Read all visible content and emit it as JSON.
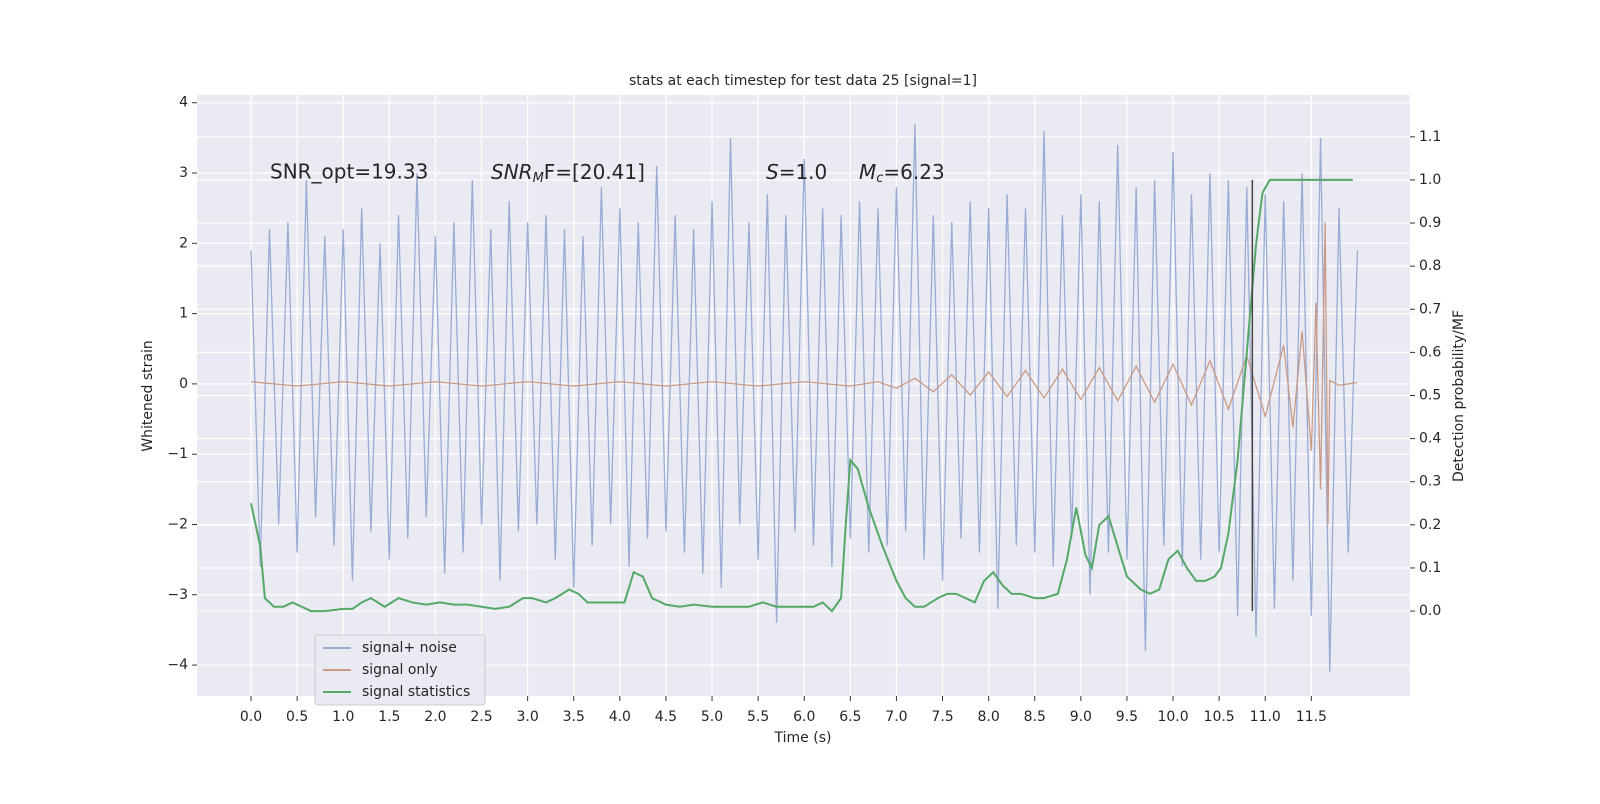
{
  "chart_data": {
    "type": "line",
    "title": "stats at each timestep for test data 25 [signal=1]",
    "x_label": "Time (s)",
    "y_label": "Whitened strain",
    "y2_label": "Detection probability/MF",
    "xlim": [
      -0.586,
      12.57
    ],
    "ylim": [
      -4.44,
      4.11
    ],
    "y2lim": [
      -0.197,
      1.197
    ],
    "xticks": [
      {
        "value": 0,
        "label": "0.0"
      },
      0.5,
      {
        "value": 1,
        "label": "1.0"
      },
      1.5,
      {
        "value": 2,
        "label": "2.0"
      },
      2.5,
      {
        "value": 3,
        "label": "3.0"
      },
      3.5,
      {
        "value": 4,
        "label": "4.0"
      },
      4.5,
      {
        "value": 5,
        "label": "5.0"
      },
      5.5,
      {
        "value": 6,
        "label": "6.0"
      },
      6.5,
      {
        "value": 7,
        "label": "7.0"
      },
      7.5,
      {
        "value": 8,
        "label": "8.0"
      },
      8.5,
      {
        "value": 9,
        "label": "9.0"
      },
      9.5,
      {
        "value": 10,
        "label": "10.0"
      },
      10.5,
      {
        "value": 11,
        "label": "11.0"
      },
      11.5
    ],
    "yticks": [
      {
        "value": -4,
        "label": "−4"
      },
      {
        "value": -3,
        "label": "−3"
      },
      {
        "value": -2,
        "label": "−2"
      },
      {
        "value": -1,
        "label": "−1"
      },
      0,
      1,
      2,
      3,
      4
    ],
    "y2ticks": [
      {
        "value": 0,
        "label": "0.0"
      },
      0.1,
      0.2,
      0.3,
      0.4,
      0.5,
      0.6,
      0.7,
      0.8,
      0.9,
      {
        "value": 1,
        "label": "1.0"
      },
      1.1
    ],
    "grid": true,
    "legend": "lower left",
    "annotations": [
      {
        "text": "SNR_opt=19.33"
      },
      {
        "text": "SNR",
        "sub": "M",
        "tail": "F=[20.41]"
      },
      {
        "text": "S",
        "tail": "=1.0"
      },
      {
        "text": "M",
        "sub": "c",
        "tail": "=6.23"
      }
    ],
    "vline": {
      "x": 10.86,
      "ymin": 0,
      "ymax": 1,
      "color": "#444444"
    },
    "series": [
      {
        "name": "signal+ noise",
        "color": "#9aabd4",
        "x": [
          0,
          0.1,
          0.2,
          0.3,
          0.4,
          0.5,
          0.6,
          0.7,
          0.8,
          0.9,
          1,
          1.1,
          1.2,
          1.3,
          1.4,
          1.5,
          1.6,
          1.7,
          1.8,
          1.9,
          2,
          2.1,
          2.2,
          2.3,
          2.4,
          2.5,
          2.6,
          2.7,
          2.8,
          2.9,
          3,
          3.1,
          3.2,
          3.3,
          3.4,
          3.5,
          3.6,
          3.7,
          3.8,
          3.9,
          4,
          4.1,
          4.2,
          4.3,
          4.4,
          4.5,
          4.6,
          4.7,
          4.8,
          4.9,
          5,
          5.1,
          5.2,
          5.3,
          5.4,
          5.5,
          5.6,
          5.7,
          5.8,
          5.9,
          6,
          6.1,
          6.2,
          6.3,
          6.4,
          6.5,
          6.6,
          6.7,
          6.8,
          6.9,
          7,
          7.1,
          7.2,
          7.3,
          7.4,
          7.5,
          7.6,
          7.7,
          7.8,
          7.9,
          8,
          8.1,
          8.2,
          8.3,
          8.4,
          8.5,
          8.6,
          8.7,
          8.8,
          8.9,
          9,
          9.1,
          9.2,
          9.3,
          9.4,
          9.5,
          9.6,
          9.7,
          9.8,
          9.9,
          10,
          10.1,
          10.2,
          10.3,
          10.4,
          10.5,
          10.6,
          10.7,
          10.8,
          10.9,
          11,
          11.1,
          11.2,
          11.3,
          11.4,
          11.5,
          11.6,
          11.7,
          11.8,
          11.9,
          12
        ],
        "values": [
          1.9,
          -2.6,
          2.2,
          -2.0,
          2.3,
          -2.4,
          2.9,
          -1.9,
          2.1,
          -2.3,
          2.2,
          -2.8,
          2.5,
          -2.1,
          2.0,
          -2.5,
          2.4,
          -2.2,
          3.0,
          -1.9,
          2.1,
          -2.7,
          2.3,
          -2.4,
          2.9,
          -2.0,
          2.2,
          -2.8,
          2.6,
          -2.1,
          2.3,
          -2.0,
          2.4,
          -2.5,
          2.2,
          -2.9,
          2.1,
          -2.3,
          2.8,
          -2.0,
          2.5,
          -2.6,
          2.3,
          -2.2,
          3.1,
          -2.1,
          2.4,
          -2.4,
          2.2,
          -2.7,
          2.6,
          -2.9,
          3.5,
          -2.0,
          2.3,
          -2.5,
          2.7,
          -3.4,
          2.4,
          -2.1,
          3.2,
          -2.3,
          2.5,
          -2.6,
          2.4,
          -2.2,
          2.6,
          -2.4,
          2.5,
          -2.3,
          2.8,
          -2.1,
          3.7,
          -2.5,
          2.4,
          -2.8,
          2.3,
          -2.2,
          2.6,
          -2.4,
          2.5,
          -3.2,
          2.7,
          -2.3,
          2.5,
          -2.4,
          3.6,
          -2.6,
          2.4,
          -2.2,
          2.7,
          -3.0,
          2.6,
          -2.4,
          3.4,
          -2.5,
          2.8,
          -3.8,
          2.9,
          -2.3,
          3.3,
          -2.6,
          2.7,
          -2.5,
          3.0,
          -2.4,
          2.9,
          -3.3,
          2.8,
          -3.6,
          2.7,
          -3.2,
          2.6,
          -2.8,
          3.0,
          -3.3,
          3.5,
          -4.1,
          2.5,
          -2.4,
          1.9
        ]
      },
      {
        "name": "signal only",
        "color": "#c99a86",
        "x": [
          0,
          0.5,
          1,
          1.5,
          2,
          2.5,
          3,
          3.5,
          4,
          4.5,
          5,
          5.5,
          6,
          6.5,
          6.8,
          7,
          7.2,
          7.4,
          7.6,
          7.8,
          8,
          8.2,
          8.4,
          8.6,
          8.8,
          9,
          9.2,
          9.4,
          9.6,
          9.8,
          10,
          10.2,
          10.4,
          10.6,
          10.8,
          11,
          11.2,
          11.3,
          11.4,
          11.5,
          11.55,
          11.6,
          11.65,
          11.68,
          11.7,
          11.8,
          12
        ],
        "values": [
          0.03,
          -0.03,
          0.03,
          -0.03,
          0.03,
          -0.03,
          0.03,
          -0.03,
          0.03,
          -0.03,
          0.03,
          -0.03,
          0.03,
          -0.03,
          0.03,
          -0.06,
          0.08,
          -0.11,
          0.13,
          -0.16,
          0.17,
          -0.18,
          0.19,
          -0.2,
          0.21,
          -0.22,
          0.23,
          -0.24,
          0.25,
          -0.26,
          0.28,
          -0.3,
          0.33,
          -0.36,
          0.4,
          -0.46,
          0.55,
          -0.62,
          0.75,
          -0.95,
          1.15,
          -1.5,
          2.3,
          -2.0,
          0.05,
          -0.02,
          0.02
        ]
      },
      {
        "name": "signal statistics",
        "color": "#55a868",
        "axis": "y2",
        "x": [
          0,
          0.1,
          0.15,
          0.25,
          0.35,
          0.45,
          0.55,
          0.65,
          0.8,
          1,
          1.1,
          1.2,
          1.3,
          1.45,
          1.6,
          1.75,
          1.9,
          2.05,
          2.2,
          2.35,
          2.5,
          2.65,
          2.8,
          2.95,
          3.05,
          3.2,
          3.3,
          3.45,
          3.55,
          3.65,
          3.8,
          3.95,
          4.05,
          4.15,
          4.25,
          4.35,
          4.5,
          4.65,
          4.8,
          5,
          5.2,
          5.4,
          5.55,
          5.7,
          5.9,
          6.1,
          6.2,
          6.3,
          6.4,
          6.45,
          6.5,
          6.58,
          6.7,
          6.85,
          7,
          7.1,
          7.2,
          7.3,
          7.45,
          7.55,
          7.65,
          7.75,
          7.85,
          7.95,
          8.05,
          8.15,
          8.25,
          8.35,
          8.5,
          8.6,
          8.75,
          8.85,
          8.95,
          9.05,
          9.12,
          9.2,
          9.3,
          9.4,
          9.5,
          9.65,
          9.75,
          9.85,
          9.95,
          10.05,
          10.15,
          10.25,
          10.35,
          10.45,
          10.52,
          10.6,
          10.7,
          10.8,
          10.9,
          10.97,
          11.05,
          11.5,
          11.95
        ],
        "values": [
          0.25,
          0.15,
          0.03,
          0.01,
          0.01,
          0.02,
          0.01,
          0.0,
          0.0,
          0.005,
          0.005,
          0.02,
          0.03,
          0.01,
          0.03,
          0.02,
          0.015,
          0.02,
          0.015,
          0.015,
          0.01,
          0.005,
          0.01,
          0.03,
          0.03,
          0.02,
          0.03,
          0.05,
          0.04,
          0.02,
          0.02,
          0.02,
          0.02,
          0.09,
          0.08,
          0.03,
          0.015,
          0.01,
          0.015,
          0.01,
          0.01,
          0.01,
          0.02,
          0.01,
          0.01,
          0.01,
          0.02,
          0.0,
          0.03,
          0.2,
          0.35,
          0.33,
          0.24,
          0.15,
          0.07,
          0.03,
          0.01,
          0.01,
          0.03,
          0.04,
          0.04,
          0.03,
          0.02,
          0.07,
          0.09,
          0.06,
          0.04,
          0.04,
          0.03,
          0.03,
          0.04,
          0.12,
          0.24,
          0.13,
          0.1,
          0.2,
          0.22,
          0.15,
          0.08,
          0.05,
          0.04,
          0.05,
          0.12,
          0.14,
          0.1,
          0.07,
          0.07,
          0.08,
          0.1,
          0.18,
          0.35,
          0.6,
          0.85,
          0.97,
          1.0,
          1.0,
          1.0
        ]
      }
    ]
  }
}
